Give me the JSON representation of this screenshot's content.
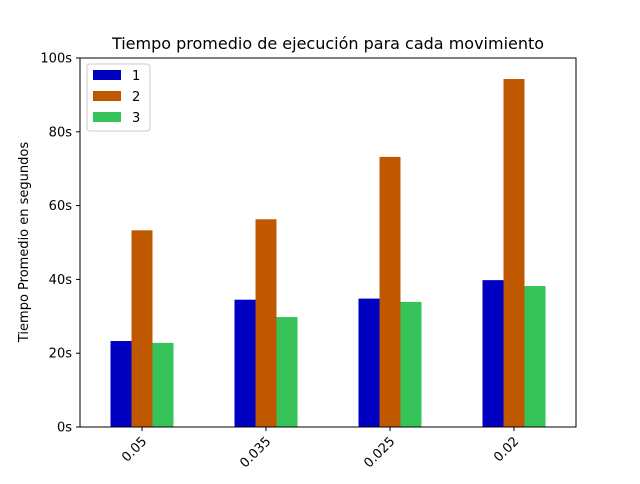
{
  "chart_data": {
    "type": "bar",
    "title": "Tiempo promedio de ejecución para cada movimiento",
    "xlabel": "",
    "ylabel": "Tiempo Promedio en segundos",
    "categories": [
      "0.05",
      "0.035",
      "0.025",
      "0.02"
    ],
    "series": [
      {
        "name": "1",
        "color": "#0000c0",
        "values": [
          23.3,
          34.5,
          34.8,
          39.8
        ]
      },
      {
        "name": "2",
        "color": "#c05800",
        "values": [
          53.3,
          56.3,
          73.2,
          94.3
        ]
      },
      {
        "name": "3",
        "color": "#36c45a",
        "values": [
          22.8,
          29.8,
          33.9,
          38.2
        ]
      }
    ],
    "ylim": [
      0,
      100
    ],
    "yticks": [
      0,
      20,
      40,
      60,
      80,
      100
    ],
    "ytick_labels": [
      "0s",
      "20s",
      "40s",
      "60s",
      "80s",
      "100s"
    ],
    "x_tick_rotation": 45,
    "grid": false,
    "legend_position": "top-left"
  }
}
